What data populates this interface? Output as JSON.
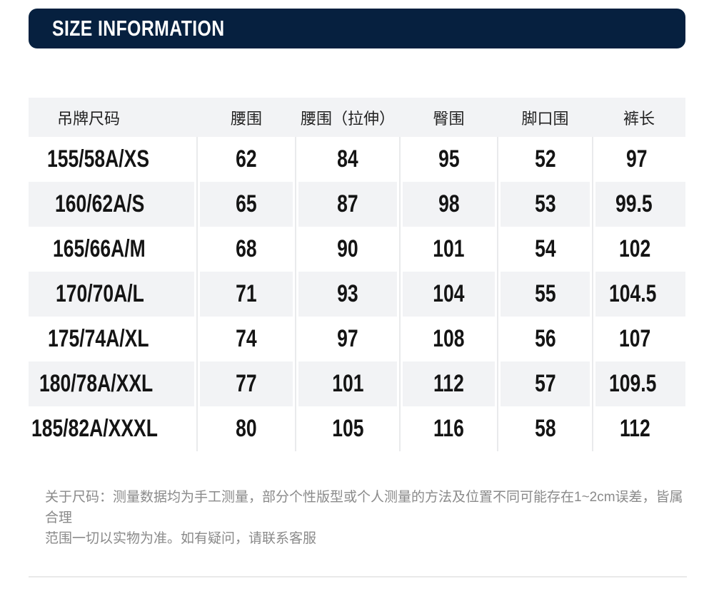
{
  "header": {
    "title": "SIZE INFORMATION"
  },
  "table": {
    "columns": [
      "吊牌尺码",
      "腰围",
      "腰围（拉伸）",
      "臀围",
      "脚口围",
      "裤长"
    ],
    "rows": [
      {
        "size": "155/58A/XS",
        "values": [
          "62",
          "84",
          "95",
          "52",
          "97"
        ]
      },
      {
        "size": "160/62A/S",
        "values": [
          "65",
          "87",
          "98",
          "53",
          "99.5"
        ]
      },
      {
        "size": "165/66A/M",
        "values": [
          "68",
          "90",
          "101",
          "54",
          "102"
        ]
      },
      {
        "size": "170/70A/L",
        "values": [
          "71",
          "93",
          "104",
          "55",
          "104.5"
        ]
      },
      {
        "size": "175/74A/XL",
        "values": [
          "74",
          "97",
          "108",
          "56",
          "107"
        ]
      },
      {
        "size": "180/78A/XXL",
        "values": [
          "77",
          "101",
          "112",
          "57",
          "109.5"
        ]
      },
      {
        "size": "185/82A/XXXL",
        "values": [
          "80",
          "105",
          "116",
          "58",
          "112"
        ]
      }
    ]
  },
  "note": {
    "line1": "关于尺码：测量数据均为手工测量，部分个性版型或个人测量的方法及位置不同可能存在1~2cm误差，皆属合理",
    "line2": "范围一切以实物为准。如有疑问，请联系客服"
  },
  "colors": {
    "banner_bg": "#06203f",
    "banner_text": "#ffffff",
    "stripe_bg": "#f2f3f5",
    "cell_divider": "#e9eaec",
    "number_text": "#141414",
    "note_text": "#8a8a8a",
    "bottom_divider": "#e9e9e9"
  }
}
